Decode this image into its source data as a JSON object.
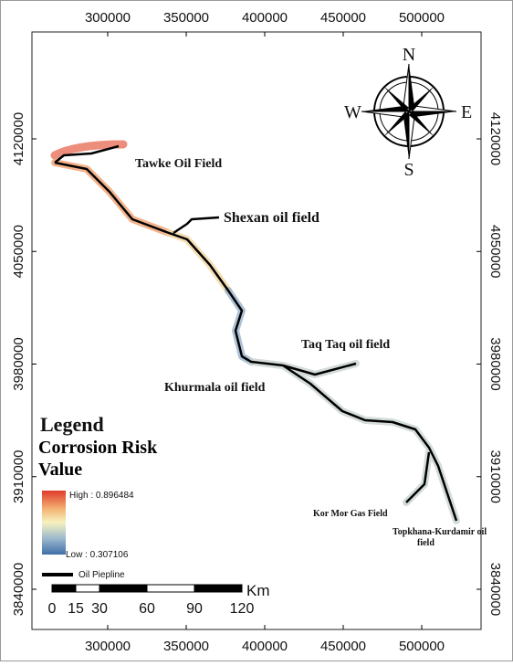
{
  "map": {
    "x_ticks": [
      300000,
      350000,
      400000,
      450000,
      500000
    ],
    "y_ticks": [
      4120000,
      4050000,
      3980000,
      3910000,
      3840000
    ],
    "compass": {
      "north": "N",
      "south": "S",
      "east": "E",
      "west": "W"
    },
    "places": {
      "tawke": "Tawke Oil Field",
      "shexan": "Shexan oil field",
      "taqtaq": "Taq Taq oil field",
      "khurmala": "Khurmala oil field",
      "kormor": "Kor Mor Gas Field",
      "topkhana": "Topkhana-Kurdamir oil field"
    },
    "legend": {
      "title": "Legend",
      "subtitle": "Corrosion Risk Value",
      "high": "High : 0.896484",
      "low": "Low : 0.307106",
      "pipeline": "Oil Piepline"
    },
    "scale_bar": {
      "unit": "Km",
      "ticks": [
        0,
        15,
        30,
        60,
        90,
        120
      ]
    }
  }
}
